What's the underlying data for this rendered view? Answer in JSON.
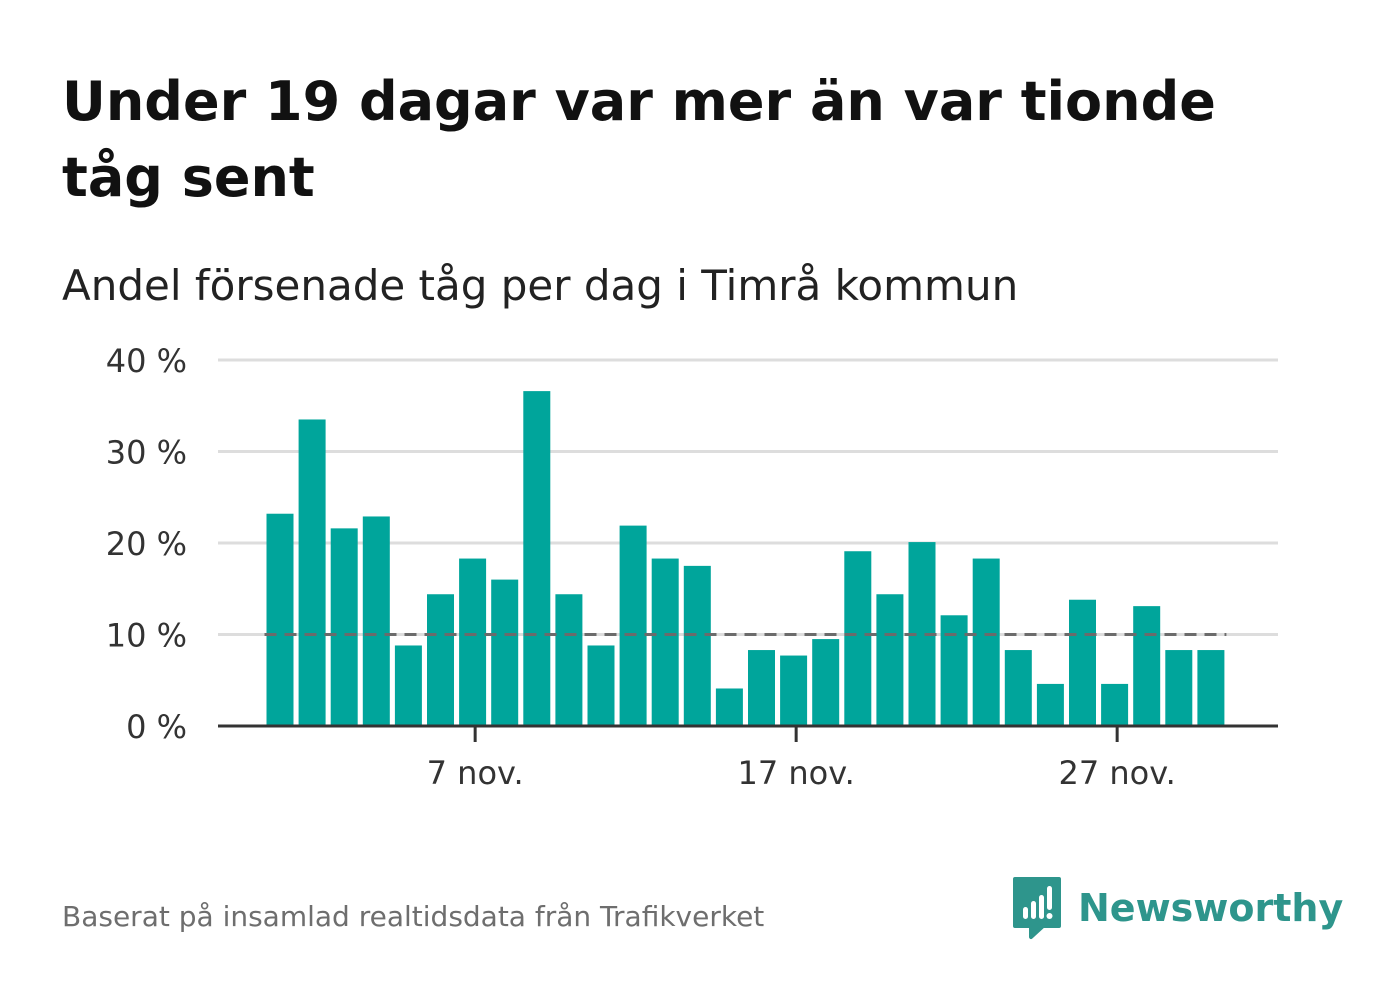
{
  "header": {
    "title": "Under 19 dagar var mer än var tionde tåg sent",
    "subtitle": "Andel försenade tåg per dag i Timrå kommun"
  },
  "footer": {
    "source": "Baserat på insamlad realtidsdata från Trafikverket",
    "brand": "Newsworthy"
  },
  "colors": {
    "bar": "#00a59b",
    "reference_line": "#6b6b6b",
    "grid": "#dddddd",
    "axis": "#333333",
    "brand": "#2e958c"
  },
  "chart_data": {
    "type": "bar",
    "x": [
      "2020-11-01",
      "2020-11-02",
      "2020-11-03",
      "2020-11-04",
      "2020-11-05",
      "2020-11-06",
      "2020-11-07",
      "2020-11-08",
      "2020-11-09",
      "2020-11-10",
      "2020-11-11",
      "2020-11-12",
      "2020-11-13",
      "2020-11-14",
      "2020-11-15",
      "2020-11-16",
      "2020-11-17",
      "2020-11-18",
      "2020-11-19",
      "2020-11-20",
      "2020-11-21",
      "2020-11-22",
      "2020-11-23",
      "2020-11-24",
      "2020-11-25",
      "2020-11-26",
      "2020-11-27",
      "2020-11-28",
      "2020-11-29",
      "2020-11-30"
    ],
    "values": [
      23.2,
      33.5,
      21.6,
      22.9,
      8.8,
      14.4,
      18.3,
      16.0,
      36.6,
      14.4,
      8.8,
      21.9,
      18.3,
      17.5,
      4.1,
      8.3,
      7.7,
      9.5,
      19.1,
      14.4,
      20.1,
      12.1,
      18.3,
      8.3,
      4.6,
      13.8,
      4.6,
      13.1,
      8.3,
      8.3
    ],
    "ylim": [
      0,
      40
    ],
    "y_ticks": [
      0,
      10,
      20,
      30,
      40
    ],
    "y_tick_labels": [
      "0 %",
      "10 %",
      "20 %",
      "30 %",
      "40 %"
    ],
    "x_ticks": [
      "2020-11-07",
      "2020-11-17",
      "2020-11-27"
    ],
    "x_tick_labels": [
      "7 nov.",
      "17 nov.",
      "27 nov."
    ],
    "reference_line": {
      "value": 10,
      "style": "dashed"
    },
    "grid": true,
    "xlabel": "",
    "ylabel": ""
  }
}
